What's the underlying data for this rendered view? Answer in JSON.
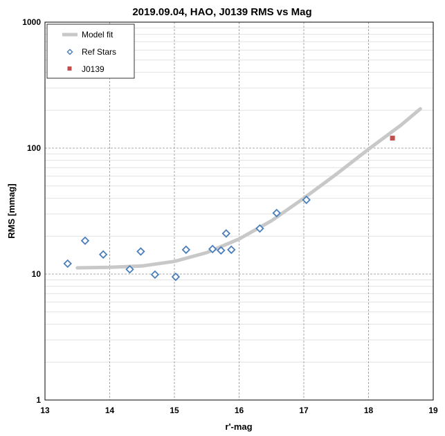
{
  "chart_data": {
    "type": "scatter",
    "title": "2019.09.04, HAO, J0139 RMS vs Mag",
    "xlabel": "r'-mag",
    "ylabel": "RMS [mmag]",
    "xlim": [
      13,
      19
    ],
    "ylim": [
      1,
      1000
    ],
    "y_scale": "log",
    "grid": true,
    "legend_position": "top-left",
    "x_ticks": [
      "13",
      "14",
      "15",
      "16",
      "17",
      "18",
      "19"
    ],
    "y_ticks": [
      "1",
      "10",
      "100",
      "1000"
    ],
    "colors": {
      "model": "#c8c8c8",
      "ref_stars": "#4a7ebb",
      "target": "#c0504d"
    },
    "series": [
      {
        "name": "Model fit",
        "kind": "line",
        "x": [
          13.5,
          14.0,
          14.5,
          15.0,
          15.5,
          16.0,
          16.5,
          17.0,
          17.5,
          18.0,
          18.5,
          18.8
        ],
        "y": [
          11.2,
          11.3,
          11.6,
          12.6,
          14.8,
          19.0,
          26.5,
          40.0,
          62.0,
          98.0,
          152.0,
          205.0
        ]
      },
      {
        "name": "Ref Stars",
        "kind": "scatter",
        "marker": "diamond-open",
        "x": [
          13.35,
          13.62,
          13.9,
          14.31,
          14.48,
          14.7,
          15.02,
          15.18,
          15.59,
          15.72,
          15.8,
          15.88,
          16.32,
          16.58,
          17.04
        ],
        "y": [
          12.1,
          18.4,
          14.3,
          10.9,
          15.1,
          9.9,
          9.5,
          15.6,
          15.8,
          15.4,
          21.0,
          15.6,
          23.0,
          30.5,
          38.8
        ]
      },
      {
        "name": "J0139",
        "kind": "scatter",
        "marker": "square",
        "x": [
          18.37
        ],
        "y": [
          120
        ]
      }
    ]
  }
}
